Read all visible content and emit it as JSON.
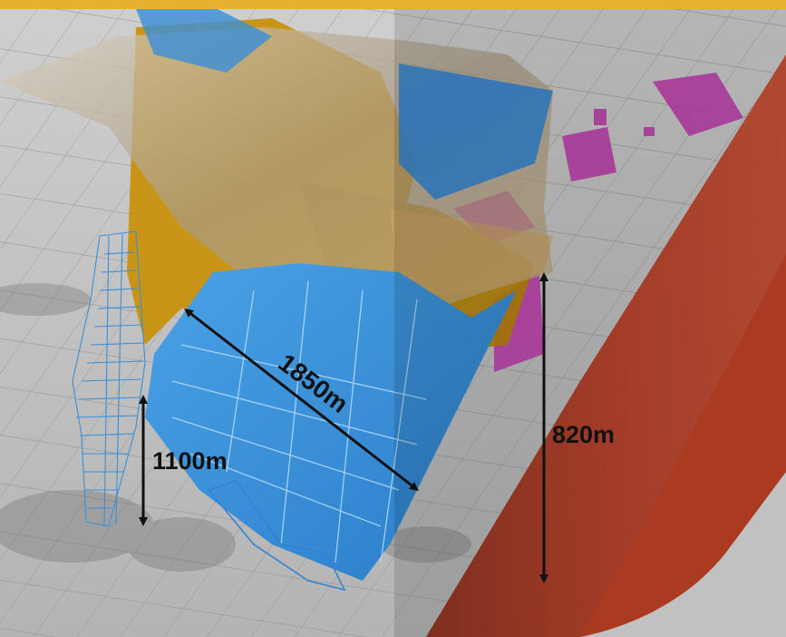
{
  "measurements": {
    "width_label": "1850m",
    "depth_left_label": "1100m",
    "depth_right_label": "820m"
  },
  "colors": {
    "banner": "#e8b030",
    "ground_grid": "#9a9a9a",
    "ore_blue": "#3a8fd8",
    "ore_gold": "#c8900a",
    "ore_magenta": "#c040b0",
    "accent_red": "#b83a22",
    "arrow": "#111111"
  }
}
